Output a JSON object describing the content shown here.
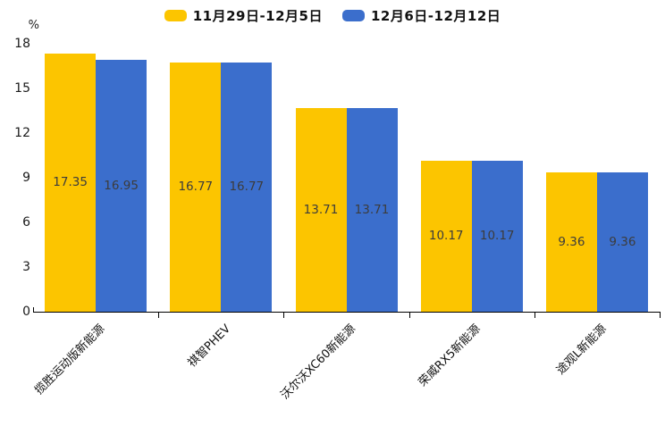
{
  "chart_data": {
    "type": "bar",
    "title": "",
    "unit_label": "%",
    "categories": [
      "揽胜运动版新能源",
      "祺智PHEV",
      "沃尔沃XC60新能源",
      "荣威RX5新能源",
      "途观L新能源"
    ],
    "series": [
      {
        "name": "11月29日-12月5日",
        "color": "#FCC500",
        "values": [
          17.35,
          16.77,
          13.71,
          10.17,
          9.36
        ]
      },
      {
        "name": "12月6日-12月12日",
        "color": "#3B6ECC",
        "values": [
          16.95,
          16.77,
          13.71,
          10.17,
          9.36
        ]
      }
    ],
    "ylim": [
      0,
      18
    ],
    "yticks": [
      0,
      3,
      6,
      9,
      12,
      15,
      18
    ],
    "grid": false,
    "legend_position": "top",
    "value_label_position": "inside-center",
    "value_label_color": "#3c3c3c",
    "axis_color": "#000000",
    "xlabel": "",
    "ylabel": "%"
  }
}
